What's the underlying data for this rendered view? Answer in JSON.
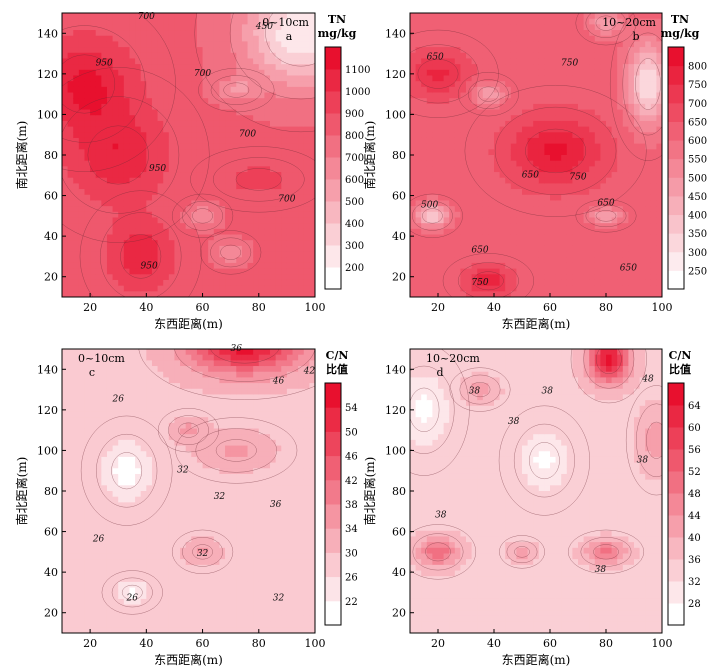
{
  "chart_data": [
    {
      "type": "heatmap",
      "panel_label": "a",
      "depth_label": "0~10cm",
      "xlabel": "东西距离(m)",
      "ylabel": "南北距离(m)",
      "xlim": [
        10,
        100
      ],
      "ylim": [
        10,
        150
      ],
      "xticks": [
        20,
        40,
        60,
        80,
        100
      ],
      "yticks": [
        20,
        40,
        60,
        80,
        100,
        120,
        140
      ],
      "colorbar": {
        "title": [
          "TN",
          "mg/kg"
        ],
        "range": [
          150,
          1150
        ],
        "ticks": [
          200,
          300,
          400,
          500,
          600,
          700,
          800,
          900,
          1000,
          1100
        ],
        "low_color": "#ffffff",
        "high_color": "#e8102e"
      },
      "contour_labels": [
        "700",
        "450",
        "950",
        "700",
        "700",
        "950",
        "700",
        "950"
      ],
      "blobs": [
        {
          "x": 18,
          "y": 115,
          "value": 1120,
          "sx": 12,
          "sy": 16
        },
        {
          "x": 30,
          "y": 80,
          "value": 1080,
          "sx": 12,
          "sy": 16
        },
        {
          "x": 38,
          "y": 30,
          "value": 1080,
          "sx": 8,
          "sy": 12
        },
        {
          "x": 80,
          "y": 68,
          "value": 950,
          "sx": 9,
          "sy": 6
        },
        {
          "x": 60,
          "y": 50,
          "value": 600,
          "sx": 4,
          "sy": 4
        },
        {
          "x": 72,
          "y": 112,
          "value": 600,
          "sx": 5,
          "sy": 4
        },
        {
          "x": 95,
          "y": 140,
          "value": 200,
          "sx": 14,
          "sy": 18
        },
        {
          "x": 70,
          "y": 32,
          "value": 600,
          "sx": 4,
          "sy": 4
        }
      ]
    },
    {
      "type": "heatmap",
      "panel_label": "b",
      "depth_label": "10~20cm",
      "xlabel": "东西距离(m)",
      "ylabel": "南北距离(m)",
      "xlim": [
        10,
        100
      ],
      "ylim": [
        10,
        150
      ],
      "xticks": [
        20,
        40,
        60,
        80,
        100
      ],
      "yticks": [
        20,
        40,
        60,
        80,
        100,
        120,
        140
      ],
      "colorbar": {
        "title": [
          "TN",
          "mg/kg"
        ],
        "range": [
          225,
          825
        ],
        "ticks": [
          250,
          300,
          350,
          400,
          450,
          500,
          550,
          600,
          650,
          700,
          750,
          800
        ],
        "low_color": "#ffffff",
        "high_color": "#e8102e"
      },
      "contour_labels": [
        "650",
        "750",
        "650",
        "750",
        "650",
        "500",
        "650",
        "650",
        "750"
      ],
      "blobs": [
        {
          "x": 62,
          "y": 82,
          "value": 810,
          "sx": 12,
          "sy": 12
        },
        {
          "x": 20,
          "y": 120,
          "value": 760,
          "sx": 8,
          "sy": 8
        },
        {
          "x": 38,
          "y": 18,
          "value": 780,
          "sx": 6,
          "sy": 5
        },
        {
          "x": 18,
          "y": 50,
          "value": 350,
          "sx": 4,
          "sy": 4
        },
        {
          "x": 38,
          "y": 110,
          "value": 450,
          "sx": 4,
          "sy": 4
        },
        {
          "x": 80,
          "y": 50,
          "value": 450,
          "sx": 4,
          "sy": 3
        },
        {
          "x": 95,
          "y": 115,
          "value": 300,
          "sx": 5,
          "sy": 14
        },
        {
          "x": 80,
          "y": 145,
          "value": 450,
          "sx": 4,
          "sy": 4
        }
      ]
    },
    {
      "type": "heatmap",
      "panel_label": "c",
      "depth_label": "0~10cm",
      "xlabel": "东西距离(m)",
      "ylabel": "南北距离(m)",
      "xlim": [
        10,
        100
      ],
      "ylim": [
        10,
        150
      ],
      "xticks": [
        20,
        40,
        60,
        80,
        100
      ],
      "yticks": [
        20,
        40,
        60,
        80,
        100,
        120,
        140
      ],
      "colorbar": {
        "title": [
          "C/N",
          "比值"
        ],
        "range": [
          21,
          57
        ],
        "ticks": [
          22,
          26,
          30,
          34,
          38,
          42,
          46,
          50,
          54
        ],
        "low_color": "#ffffff",
        "high_color": "#e8102e"
      },
      "contour_labels": [
        "26",
        "32",
        "32",
        "36",
        "46",
        "42",
        "36",
        "26",
        "32",
        "26",
        "32"
      ],
      "blobs": [
        {
          "x": 75,
          "y": 152,
          "value": 57,
          "sx": 14,
          "sy": 10
        },
        {
          "x": 33,
          "y": 90,
          "value": 21,
          "sx": 6,
          "sy": 10
        },
        {
          "x": 60,
          "y": 50,
          "value": 36,
          "sx": 4,
          "sy": 4
        },
        {
          "x": 72,
          "y": 100,
          "value": 36,
          "sx": 8,
          "sy": 6
        },
        {
          "x": 35,
          "y": 30,
          "value": 22,
          "sx": 4,
          "sy": 4
        },
        {
          "x": 55,
          "y": 110,
          "value": 36,
          "sx": 4,
          "sy": 4
        }
      ]
    },
    {
      "type": "heatmap",
      "panel_label": "d",
      "depth_label": "10~20cm",
      "xlabel": "东西距离(m)",
      "ylabel": "南北距离(m)",
      "xlim": [
        10,
        100
      ],
      "ylim": [
        10,
        150
      ],
      "xticks": [
        20,
        40,
        60,
        80,
        100
      ],
      "yticks": [
        20,
        40,
        60,
        80,
        100,
        120,
        140
      ],
      "colorbar": {
        "title": [
          "C/N",
          "比值"
        ],
        "range": [
          27,
          67
        ],
        "ticks": [
          28,
          32,
          36,
          40,
          44,
          48,
          52,
          56,
          60,
          64
        ],
        "low_color": "#ffffff",
        "high_color": "#e8102e"
      },
      "contour_labels": [
        "38",
        "38",
        "38",
        "38",
        "38",
        "38",
        "48"
      ],
      "blobs": [
        {
          "x": 81,
          "y": 145,
          "value": 67,
          "sx": 5,
          "sy": 8
        },
        {
          "x": 20,
          "y": 50,
          "value": 52,
          "sx": 5,
          "sy": 5
        },
        {
          "x": 80,
          "y": 50,
          "value": 50,
          "sx": 5,
          "sy": 4
        },
        {
          "x": 50,
          "y": 50,
          "value": 44,
          "sx": 3,
          "sy": 3
        },
        {
          "x": 58,
          "y": 95,
          "value": 28,
          "sx": 6,
          "sy": 10
        },
        {
          "x": 15,
          "y": 120,
          "value": 28,
          "sx": 6,
          "sy": 12
        },
        {
          "x": 35,
          "y": 130,
          "value": 44,
          "sx": 4,
          "sy": 4
        },
        {
          "x": 98,
          "y": 105,
          "value": 44,
          "sx": 4,
          "sy": 10
        }
      ]
    }
  ]
}
